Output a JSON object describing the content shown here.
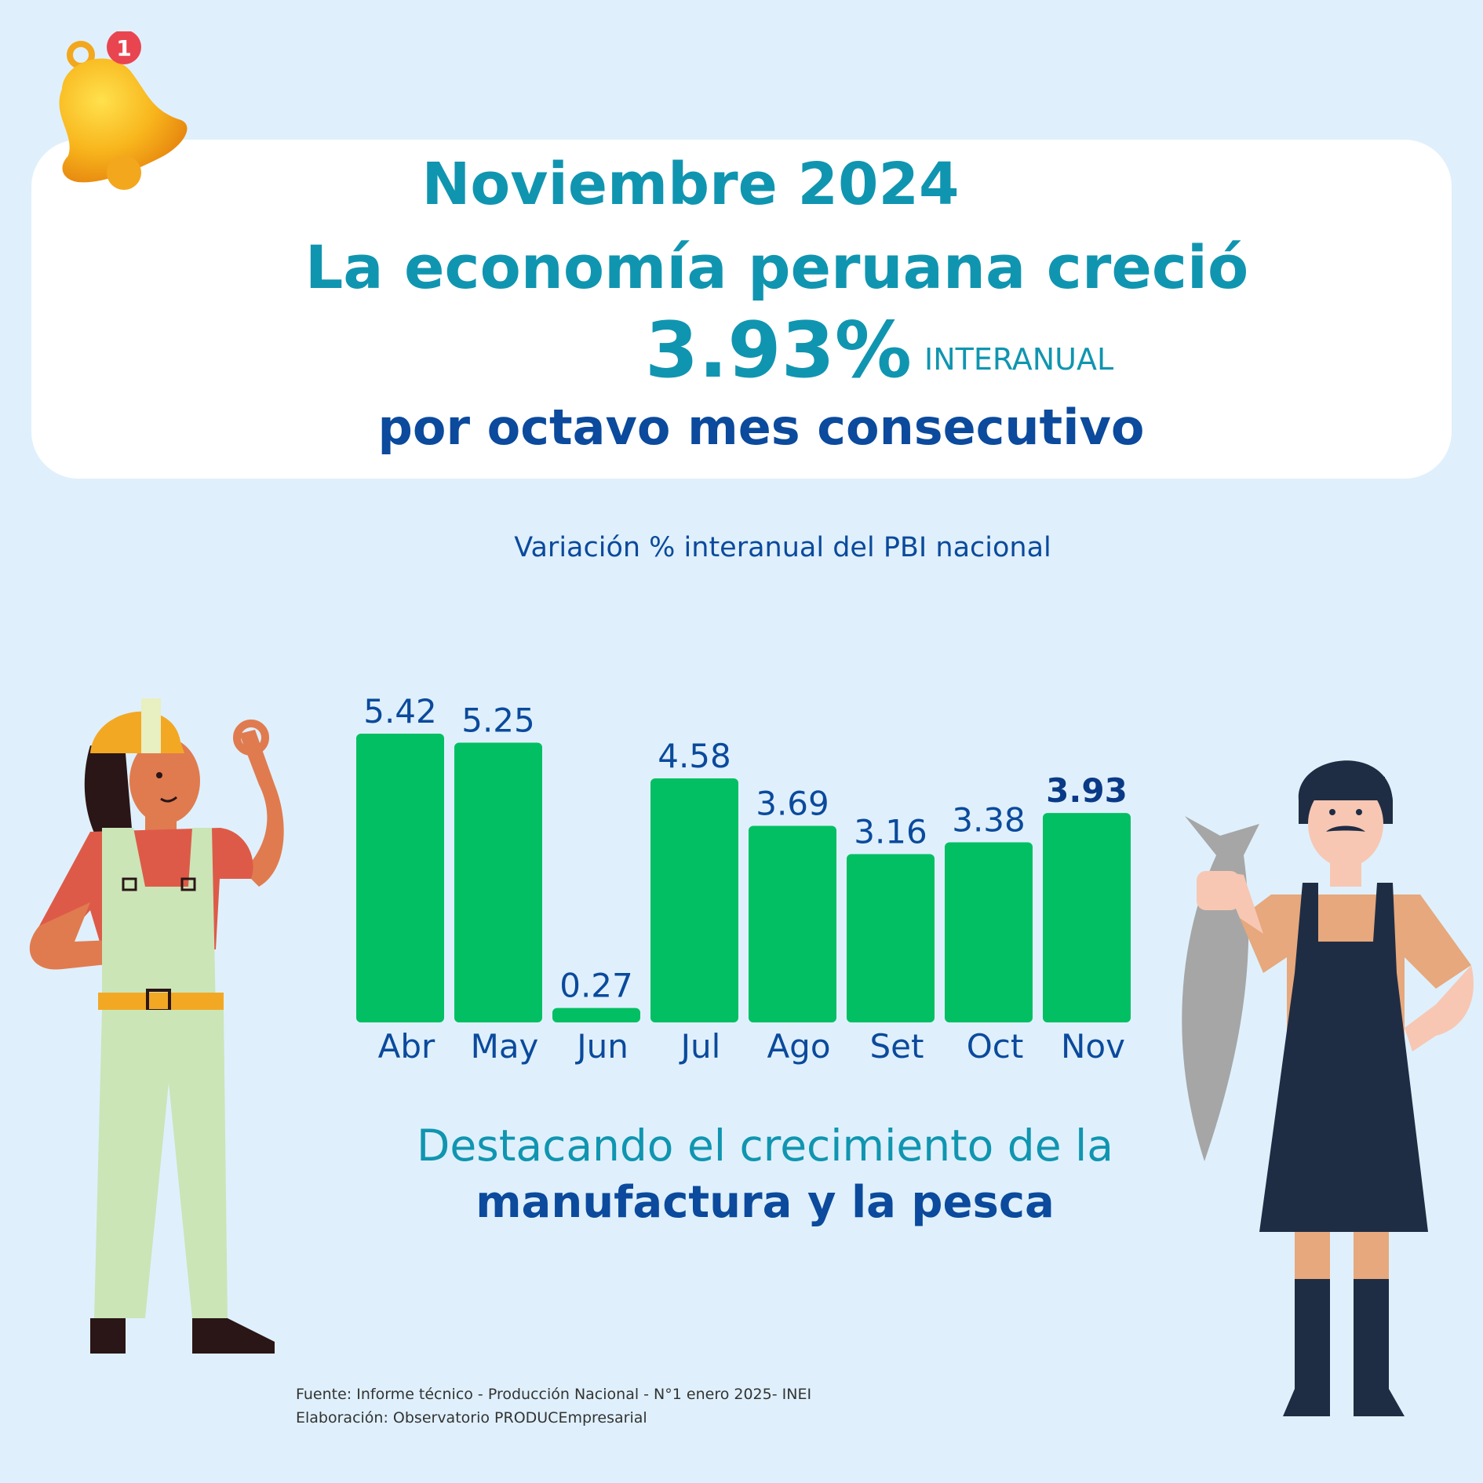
{
  "headline": {
    "date": "Noviembre 2024",
    "main": "La economía peruana creció",
    "value": "3.93%",
    "unit": "INTERANUAL",
    "sub": "por octavo mes consecutivo"
  },
  "notification_badge": "1",
  "caption": {
    "line1": "Destacando el crecimiento de la",
    "line2": "manufactura y la pesca"
  },
  "source": {
    "line1": "Fuente: Informe técnico - Producción Nacional - N°1 enero 2025- INEI",
    "line2": "Elaboración: Observatorio PRODUCEmpresarial"
  },
  "colors": {
    "bar": "#02bf63",
    "accent": "#1095b0",
    "dark_blue": "#0b4a9c",
    "background": "#dff0fc"
  },
  "chart_data": {
    "type": "bar",
    "title": "Variación % interanual  del PBI nacional",
    "categories": [
      "Abr",
      "May",
      "Jun",
      "Jul",
      "Ago",
      "Set",
      "Oct",
      "Nov"
    ],
    "values": [
      5.42,
      5.25,
      0.27,
      4.58,
      3.69,
      3.16,
      3.38,
      3.93
    ],
    "value_labels": [
      "5.42",
      "5.25",
      "0.27",
      "4.58",
      "3.69",
      "3.16",
      "3.38",
      "3.93"
    ],
    "highlight": "Nov",
    "ylim": [
      0,
      5.42
    ],
    "grid": false,
    "legend": "none"
  }
}
